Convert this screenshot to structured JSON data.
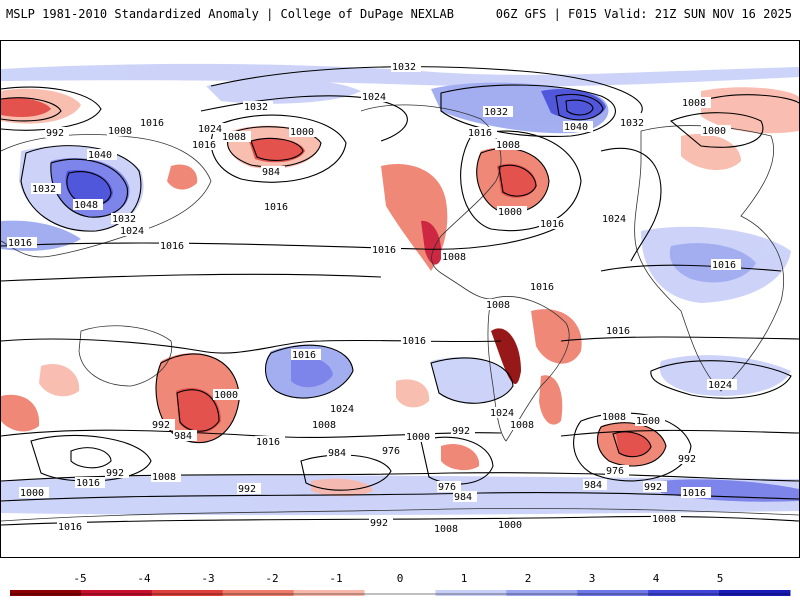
{
  "header": {
    "title_left": "MSLP 1981-2010 Standardized Anomaly | College of DuPage NEXLAB",
    "title_right": "06Z GFS | F015 Valid: 21Z SUN NOV 16 2025"
  },
  "map": {
    "projection": "global-equidistant",
    "isobar_labels": [
      "1032",
      "1032",
      "1024",
      "1032",
      "1040",
      "1032",
      "1008",
      "1000",
      "1008",
      "992",
      "1016",
      "1024",
      "1016",
      "1008",
      "1000",
      "984",
      "1016",
      "1008",
      "1016",
      "1000",
      "1016",
      "1024",
      "1040",
      "1032",
      "1048",
      "1032",
      "1024",
      "1016",
      "1016",
      "1016",
      "1016",
      "1008",
      "1008",
      "1016",
      "1016",
      "1016",
      "1016",
      "1000",
      "992",
      "984",
      "1024",
      "1016",
      "1008",
      "984",
      "976",
      "1000",
      "992",
      "1024",
      "1008",
      "1008",
      "1000",
      "1024",
      "976",
      "984",
      "992",
      "1016",
      "992",
      "1008",
      "1000",
      "1016",
      "992",
      "976",
      "984",
      "1000",
      "992",
      "1008",
      "1016",
      "992",
      "1008"
    ],
    "anomaly_colors": {
      "neg5": "#8b0000",
      "neg4": "#c8102e",
      "neg3": "#e0403a",
      "neg2": "#ef7c6a",
      "neg1": "#f8b7a8",
      "pos1": "#c8cff8",
      "pos2": "#9aa6f0",
      "pos3": "#6f78e8",
      "pos4": "#3f45d8",
      "pos5": "#1a1ab8"
    }
  },
  "colorbar": {
    "ticks": [
      "-5",
      "-4",
      "-3",
      "-2",
      "-1",
      "0",
      "1",
      "2",
      "3",
      "4",
      "5"
    ]
  }
}
